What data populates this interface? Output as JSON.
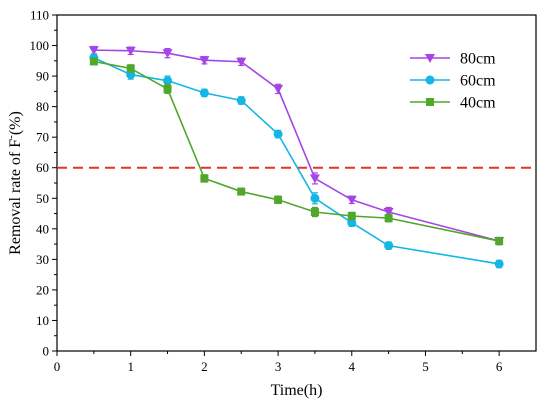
{
  "chart_data": {
    "type": "line",
    "xlabel": "Time(h)",
    "ylabel_main": "Removal rate of F",
    "ylabel_sup": "-",
    "ylabel_suffix": "(%)",
    "xlim": [
      0,
      6.5
    ],
    "ylim": [
      0,
      110
    ],
    "xticks": [
      0,
      0.5,
      1,
      1.5,
      2,
      2.5,
      3,
      3.5,
      4,
      4.5,
      5,
      5.5,
      6
    ],
    "xtick_labels": [
      "0",
      "",
      "1",
      "",
      "2",
      "",
      "3",
      "",
      "4",
      "",
      "5",
      "",
      "6"
    ],
    "yticks": [
      0,
      10,
      20,
      30,
      40,
      50,
      60,
      70,
      80,
      90,
      100,
      110
    ],
    "grid": false,
    "legend_position": "top-right",
    "reference_line": {
      "y": 60,
      "color": "#e8302a",
      "style": "dashed"
    },
    "series": [
      {
        "name": "80cm",
        "color": "#a545e6",
        "marker": "triangle-down",
        "x": [
          0.5,
          1,
          1.5,
          2,
          2.5,
          3,
          3.5,
          4,
          4.5,
          6
        ],
        "y": [
          98.5,
          98.3,
          97.5,
          95.2,
          94.7,
          85.8,
          56.5,
          49.5,
          45.5,
          36.0
        ],
        "err": [
          1.2,
          1.2,
          1.5,
          1.2,
          1.2,
          1.5,
          1.8,
          1.2,
          1.5,
          1.2
        ]
      },
      {
        "name": "60cm",
        "color": "#14b6e6",
        "marker": "circle",
        "x": [
          0.5,
          1,
          1.5,
          2,
          2.5,
          3,
          3.5,
          4,
          4.5,
          6
        ],
        "y": [
          96.0,
          90.5,
          88.5,
          84.5,
          82.0,
          71.0,
          50.0,
          42.0,
          34.5,
          28.5
        ],
        "err": [
          1.2,
          1.5,
          1.5,
          1.2,
          1.2,
          1.2,
          1.8,
          1.2,
          1.2,
          1.2
        ]
      },
      {
        "name": "40cm",
        "color": "#4fa82a",
        "marker": "square",
        "x": [
          0.5,
          1,
          1.5,
          2,
          2.5,
          3,
          3.5,
          4,
          4.5,
          6
        ],
        "y": [
          94.8,
          92.5,
          85.8,
          56.5,
          52.2,
          49.5,
          45.5,
          44.2,
          43.5,
          36.0
        ],
        "err": [
          1.0,
          1.2,
          1.5,
          1.2,
          1.0,
          1.2,
          1.5,
          1.2,
          1.2,
          1.0
        ]
      }
    ]
  }
}
